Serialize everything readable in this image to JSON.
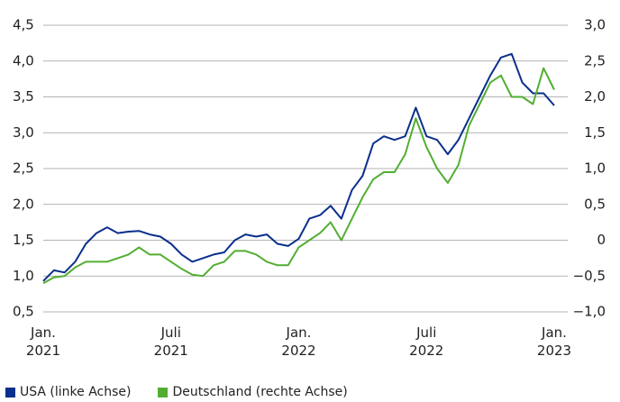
{
  "chart_data": {
    "type": "line",
    "categories": [
      "Jan. 2021",
      null,
      null,
      null,
      null,
      null,
      null,
      null,
      null,
      null,
      null,
      null,
      "Juli 2021",
      null,
      null,
      null,
      null,
      null,
      null,
      null,
      null,
      null,
      null,
      null,
      "Jan. 2022",
      null,
      null,
      null,
      null,
      null,
      null,
      null,
      null,
      null,
      null,
      null,
      "Juli 2022",
      null,
      null,
      null,
      null,
      null,
      null,
      null,
      null,
      null,
      null,
      null,
      "Jan. 2023"
    ],
    "series": [
      {
        "name": "USA (linke Achse)",
        "color": "#0b2f8c",
        "axis": "y",
        "values": [
          0.93,
          1.08,
          1.05,
          1.2,
          1.45,
          1.6,
          1.68,
          1.6,
          1.62,
          1.63,
          1.58,
          1.55,
          1.45,
          1.3,
          1.2,
          1.25,
          1.3,
          1.33,
          1.5,
          1.58,
          1.55,
          1.58,
          1.45,
          1.42,
          1.52,
          1.8,
          1.85,
          1.98,
          1.8,
          2.2,
          2.4,
          2.85,
          2.95,
          2.9,
          2.95,
          3.35,
          2.95,
          2.9,
          2.7,
          2.9,
          3.2,
          3.5,
          3.8,
          4.05,
          4.1,
          3.7,
          3.55,
          3.55,
          3.38
        ]
      },
      {
        "name": "Deutschland (rechte Achse)",
        "color": "#52ae32",
        "axis": "y2",
        "values": [
          -0.6,
          -0.52,
          -0.5,
          -0.38,
          -0.3,
          -0.3,
          -0.3,
          -0.25,
          -0.2,
          -0.1,
          -0.2,
          -0.2,
          -0.3,
          -0.4,
          -0.48,
          -0.5,
          -0.35,
          -0.3,
          -0.15,
          -0.15,
          -0.2,
          -0.3,
          -0.35,
          -0.35,
          -0.1,
          0.0,
          0.1,
          0.25,
          0.0,
          0.3,
          0.6,
          0.85,
          0.95,
          0.95,
          1.2,
          1.7,
          1.3,
          1.0,
          0.8,
          1.05,
          1.6,
          1.9,
          2.2,
          2.3,
          2.0,
          2.0,
          1.9,
          2.4,
          2.1
        ]
      }
    ],
    "ylim": [
      0.5,
      4.5
    ],
    "yticks": [
      {
        "value": 0.5,
        "label": "0,5"
      },
      {
        "value": 1.0,
        "label": "1,0"
      },
      {
        "value": 1.5,
        "label": "1,5"
      },
      {
        "value": 2.0,
        "label": "2,0"
      },
      {
        "value": 2.5,
        "label": "2,5"
      },
      {
        "value": 3.0,
        "label": "3,0"
      },
      {
        "value": 3.5,
        "label": "3,5"
      },
      {
        "value": 4.0,
        "label": "4,0"
      },
      {
        "value": 4.5,
        "label": "4,5"
      }
    ],
    "y2lim": [
      -1.0,
      3.0
    ],
    "y2ticks": [
      {
        "value": -1.0,
        "label": "−1,0"
      },
      {
        "value": -0.5,
        "label": "−0,5"
      },
      0,
      {
        "value": 0.5,
        "label": "0,5"
      },
      {
        "value": 1.0,
        "label": "1,0"
      },
      {
        "value": 1.5,
        "label": "1,5"
      },
      {
        "value": 2.0,
        "label": "2,0"
      },
      {
        "value": 2.5,
        "label": "2,5"
      },
      {
        "value": 3.0,
        "label": "3,0"
      }
    ],
    "grid": true,
    "legend": "bottom"
  }
}
